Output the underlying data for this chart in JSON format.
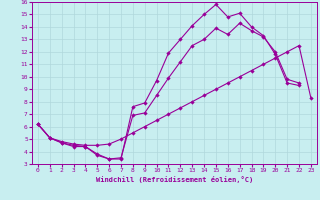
{
  "xlabel": "Windchill (Refroidissement éolien,°C)",
  "bg_color": "#c8eef0",
  "grid_color": "#b0d8dc",
  "line_color": "#990099",
  "xlim": [
    -0.5,
    23.5
  ],
  "ylim": [
    3,
    16
  ],
  "xticks": [
    0,
    1,
    2,
    3,
    4,
    5,
    6,
    7,
    8,
    9,
    10,
    11,
    12,
    13,
    14,
    15,
    16,
    17,
    18,
    19,
    20,
    21,
    22,
    23
  ],
  "yticks": [
    3,
    4,
    5,
    6,
    7,
    8,
    9,
    10,
    11,
    12,
    13,
    14,
    15,
    16
  ],
  "curve1_x": [
    0,
    1,
    2,
    3,
    4,
    5,
    6,
    7,
    8,
    9,
    10,
    11,
    12,
    13,
    14,
    15,
    16,
    17,
    18,
    19,
    20,
    21,
    22
  ],
  "curve1_y": [
    6.2,
    5.1,
    4.7,
    4.5,
    4.4,
    3.8,
    3.4,
    3.4,
    7.6,
    7.9,
    9.7,
    11.9,
    13.0,
    14.1,
    15.0,
    15.8,
    14.8,
    15.1,
    14.0,
    13.3,
    11.8,
    9.5,
    9.3
  ],
  "curve2_x": [
    0,
    1,
    2,
    3,
    4,
    5,
    6,
    7,
    8,
    9,
    10,
    11,
    12,
    13,
    14,
    15,
    16,
    17,
    18,
    19,
    20,
    21,
    22,
    23
  ],
  "curve2_y": [
    6.2,
    5.1,
    4.8,
    4.6,
    4.5,
    4.5,
    4.6,
    5.0,
    5.5,
    6.0,
    6.5,
    7.0,
    7.5,
    8.0,
    8.5,
    9.0,
    9.5,
    10.0,
    10.5,
    11.0,
    11.5,
    12.0,
    12.5,
    8.3
  ],
  "curve3_x": [
    0,
    1,
    2,
    3,
    4,
    5,
    6,
    7,
    8,
    9,
    10,
    11,
    12,
    13,
    14,
    15,
    16,
    17,
    18,
    19,
    20,
    21,
    22
  ],
  "curve3_y": [
    6.2,
    5.1,
    4.7,
    4.4,
    4.4,
    3.7,
    3.4,
    3.5,
    6.9,
    7.1,
    8.5,
    9.9,
    11.2,
    12.5,
    13.0,
    13.9,
    13.4,
    14.3,
    13.7,
    13.2,
    12.0,
    9.8,
    9.5
  ]
}
